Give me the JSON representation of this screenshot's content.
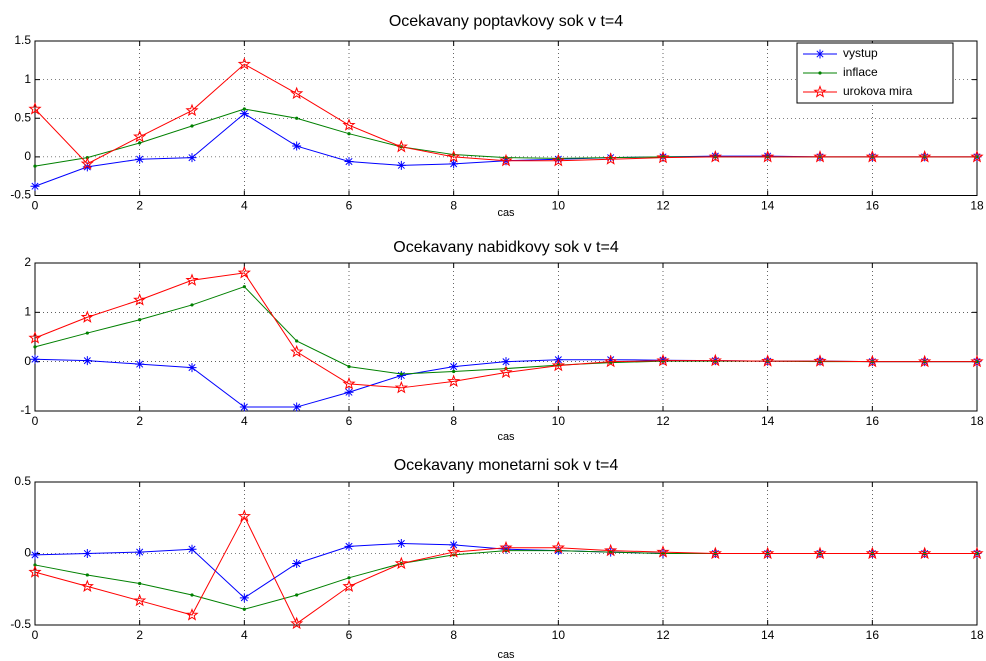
{
  "chart_data": [
    {
      "type": "line",
      "title": "Ocekavany poptavkovy sok v t=4",
      "x_label": "cas",
      "x": [
        0,
        1,
        2,
        3,
        4,
        5,
        6,
        7,
        8,
        9,
        10,
        11,
        12,
        13,
        14,
        15,
        16,
        17,
        18
      ],
      "xlim": [
        0,
        18
      ],
      "xticks": [
        0,
        2,
        4,
        6,
        8,
        10,
        12,
        14,
        16,
        18
      ],
      "ylim": [
        -0.5,
        1.5
      ],
      "yticks": [
        -0.5,
        0,
        0.5,
        1,
        1.5
      ],
      "grid": true,
      "legend": "upper right",
      "series": [
        {
          "name": "vystup",
          "color": "#0000ff",
          "marker": "asterisk",
          "values": [
            -0.38,
            -0.13,
            -0.03,
            -0.01,
            0.56,
            0.14,
            -0.06,
            -0.11,
            -0.09,
            -0.05,
            -0.03,
            -0.01,
            0,
            0.01,
            0.01,
            0,
            0,
            0,
            0
          ]
        },
        {
          "name": "inflace",
          "color": "#008000",
          "marker": "dot",
          "values": [
            -0.12,
            -0.01,
            0.18,
            0.4,
            0.62,
            0.5,
            0.3,
            0.13,
            0.03,
            -0.01,
            -0.02,
            -0.01,
            0,
            0,
            0,
            0,
            0,
            0,
            0
          ]
        },
        {
          "name": "urokova mira",
          "color": "#ff0000",
          "marker": "star",
          "values": [
            0.62,
            -0.09,
            0.26,
            0.6,
            1.2,
            0.82,
            0.41,
            0.13,
            0,
            -0.05,
            -0.05,
            -0.03,
            -0.01,
            0,
            0,
            0,
            0,
            0,
            0
          ]
        }
      ]
    },
    {
      "type": "line",
      "title": "Ocekavany nabidkovy sok v t=4",
      "x_label": "cas",
      "x": [
        0,
        1,
        2,
        3,
        4,
        5,
        6,
        7,
        8,
        9,
        10,
        11,
        12,
        13,
        14,
        15,
        16,
        17,
        18
      ],
      "xlim": [
        0,
        18
      ],
      "xticks": [
        0,
        2,
        4,
        6,
        8,
        10,
        12,
        14,
        16,
        18
      ],
      "ylim": [
        -1,
        2
      ],
      "yticks": [
        -1,
        0,
        1,
        2
      ],
      "grid": true,
      "series": [
        {
          "name": "vystup",
          "color": "#0000ff",
          "marker": "asterisk",
          "values": [
            0.05,
            0.02,
            -0.05,
            -0.12,
            -0.92,
            -0.92,
            -0.62,
            -0.28,
            -0.1,
            0,
            0.04,
            0.04,
            0.03,
            0.02,
            0.01,
            0.01,
            0,
            0,
            0
          ]
        },
        {
          "name": "inflace",
          "color": "#008000",
          "marker": "dot",
          "values": [
            0.3,
            0.58,
            0.85,
            1.15,
            1.52,
            0.42,
            -0.1,
            -0.25,
            -0.2,
            -0.14,
            -0.07,
            -0.02,
            0.01,
            0.01,
            0.01,
            0,
            0,
            0,
            0
          ]
        },
        {
          "name": "urokova mira",
          "color": "#ff0000",
          "marker": "star",
          "values": [
            0.48,
            0.9,
            1.25,
            1.65,
            1.8,
            0.2,
            -0.45,
            -0.53,
            -0.4,
            -0.22,
            -0.08,
            0,
            0.02,
            0.02,
            0.01,
            0.01,
            0,
            0,
            0
          ]
        }
      ]
    },
    {
      "type": "line",
      "title": "Ocekavany monetarni sok v t=4",
      "x_label": "cas",
      "x": [
        0,
        1,
        2,
        3,
        4,
        5,
        6,
        7,
        8,
        9,
        10,
        11,
        12,
        13,
        14,
        15,
        16,
        17,
        18
      ],
      "xlim": [
        0,
        18
      ],
      "xticks": [
        0,
        2,
        4,
        6,
        8,
        10,
        12,
        14,
        16,
        18
      ],
      "ylim": [
        -0.5,
        0.5
      ],
      "yticks": [
        -0.5,
        0,
        0.5
      ],
      "grid": true,
      "series": [
        {
          "name": "vystup",
          "color": "#0000ff",
          "marker": "asterisk",
          "values": [
            -0.01,
            0,
            0.01,
            0.03,
            -0.31,
            -0.07,
            0.05,
            0.07,
            0.06,
            0.03,
            0.02,
            0.01,
            0,
            0,
            0,
            0,
            0,
            0,
            0
          ]
        },
        {
          "name": "inflace",
          "color": "#008000",
          "marker": "dot",
          "values": [
            -0.08,
            -0.15,
            -0.21,
            -0.29,
            -0.39,
            -0.29,
            -0.17,
            -0.07,
            -0.01,
            0.02,
            0.02,
            0.01,
            0,
            0,
            0,
            0,
            0,
            0,
            0
          ]
        },
        {
          "name": "urokova mira",
          "color": "#ff0000",
          "marker": "star",
          "values": [
            -0.13,
            -0.23,
            -0.33,
            -0.43,
            0.26,
            -0.49,
            -0.23,
            -0.07,
            0.01,
            0.04,
            0.04,
            0.02,
            0.01,
            0,
            0,
            0,
            0,
            0,
            0
          ]
        }
      ]
    }
  ]
}
